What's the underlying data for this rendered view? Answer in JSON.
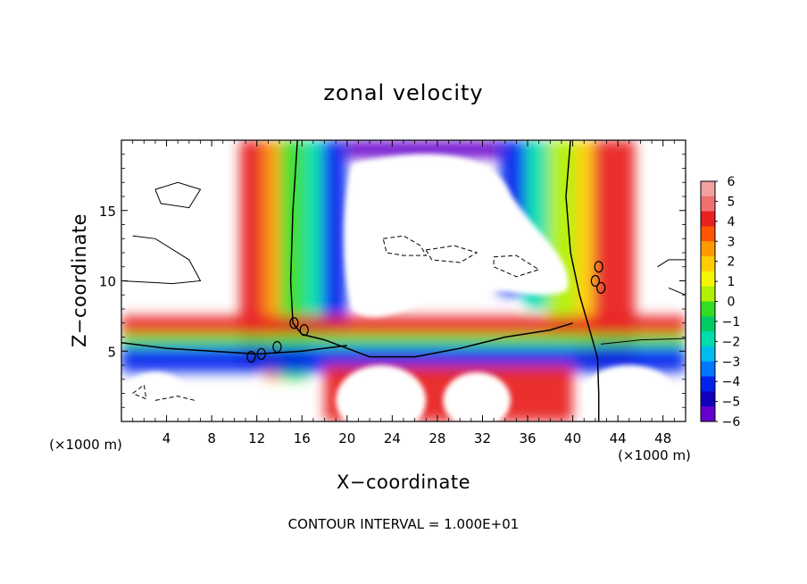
{
  "chart_data": {
    "type": "heatmap",
    "title": "zonal velocity",
    "xlabel": "X−coordinate",
    "ylabel": "Z−coordinate",
    "x_unit": "(×1000 m)",
    "y_unit": "(×1000 m)",
    "xlim": [
      0,
      50
    ],
    "ylim": [
      0,
      20
    ],
    "x_ticks": [
      4,
      8,
      12,
      16,
      20,
      24,
      28,
      32,
      36,
      40,
      44,
      48
    ],
    "y_ticks": [
      5,
      10,
      15
    ],
    "contour_note": "CONTOUR INTERVAL = 1.000E+01",
    "colorbar": {
      "range": [
        -6,
        6
      ],
      "tick_labels": [
        "6",
        "5",
        "4",
        "3",
        "2",
        "1",
        "0",
        "−1",
        "−2",
        "−3",
        "−4",
        "−5",
        "−6"
      ],
      "colors": [
        "#f2a0a0",
        "#f07070",
        "#e82020",
        "#ff5500",
        "#ff9900",
        "#ffcc00",
        "#f5f500",
        "#b0f000",
        "#33dd22",
        "#00cc66",
        "#00ddaa",
        "#00bbee",
        "#0077ff",
        "#0022ee",
        "#1100bb",
        "#6600cc"
      ]
    },
    "field_bands": [
      {
        "name": "red-column-left",
        "x": [
          10.5,
          13.2
        ],
        "z": [
          4,
          20
        ],
        "value": 4.5
      },
      {
        "name": "orange-column-left",
        "x": [
          12.6,
          14.2
        ],
        "z": [
          3,
          20
        ],
        "value": 2.5
      },
      {
        "name": "green-column-left",
        "x": [
          14.0,
          16.5
        ],
        "z": [
          3,
          20
        ],
        "value": 0.0
      },
      {
        "name": "cyan-column-left",
        "x": [
          16.2,
          18.0
        ],
        "z": [
          6,
          20
        ],
        "value": -2.0
      },
      {
        "name": "blue-column-left",
        "x": [
          17.8,
          20.0
        ],
        "z": [
          6.5,
          20
        ],
        "value": -4.0
      },
      {
        "name": "purple-top-center",
        "x": [
          20.0,
          34.0
        ],
        "z": [
          18.7,
          20
        ],
        "value": -6.0
      },
      {
        "name": "blue-column-right",
        "x": [
          33.5,
          36.0
        ],
        "z": [
          9,
          20
        ],
        "value": -4.0
      },
      {
        "name": "cyan-column-right",
        "x": [
          35.8,
          38.0
        ],
        "z": [
          8,
          20
        ],
        "value": -2.0
      },
      {
        "name": "green-column-right",
        "x": [
          37.8,
          40.5
        ],
        "z": [
          6,
          20
        ],
        "value": 0.5
      },
      {
        "name": "yellow-column-right",
        "x": [
          40.3,
          42.0
        ],
        "z": [
          4,
          20
        ],
        "value": 2.0
      },
      {
        "name": "red-column-right",
        "x": [
          41.8,
          45.5
        ],
        "z": [
          4,
          20
        ],
        "value": 4.5
      },
      {
        "name": "red-low-layer",
        "x": [
          0,
          50
        ],
        "z": [
          6.2,
          7.5
        ],
        "value": 4.0
      },
      {
        "name": "green-low-layer",
        "x": [
          0,
          50
        ],
        "z": [
          5.3,
          6.2
        ],
        "value": 0.0
      },
      {
        "name": "blue-low-layer",
        "x": [
          0,
          50
        ],
        "z": [
          3.5,
          5.3
        ],
        "value": -4.0
      },
      {
        "name": "red-surface-blobs",
        "x": [
          18,
          40
        ],
        "z": [
          0,
          4
        ],
        "value": 4.5
      }
    ]
  }
}
